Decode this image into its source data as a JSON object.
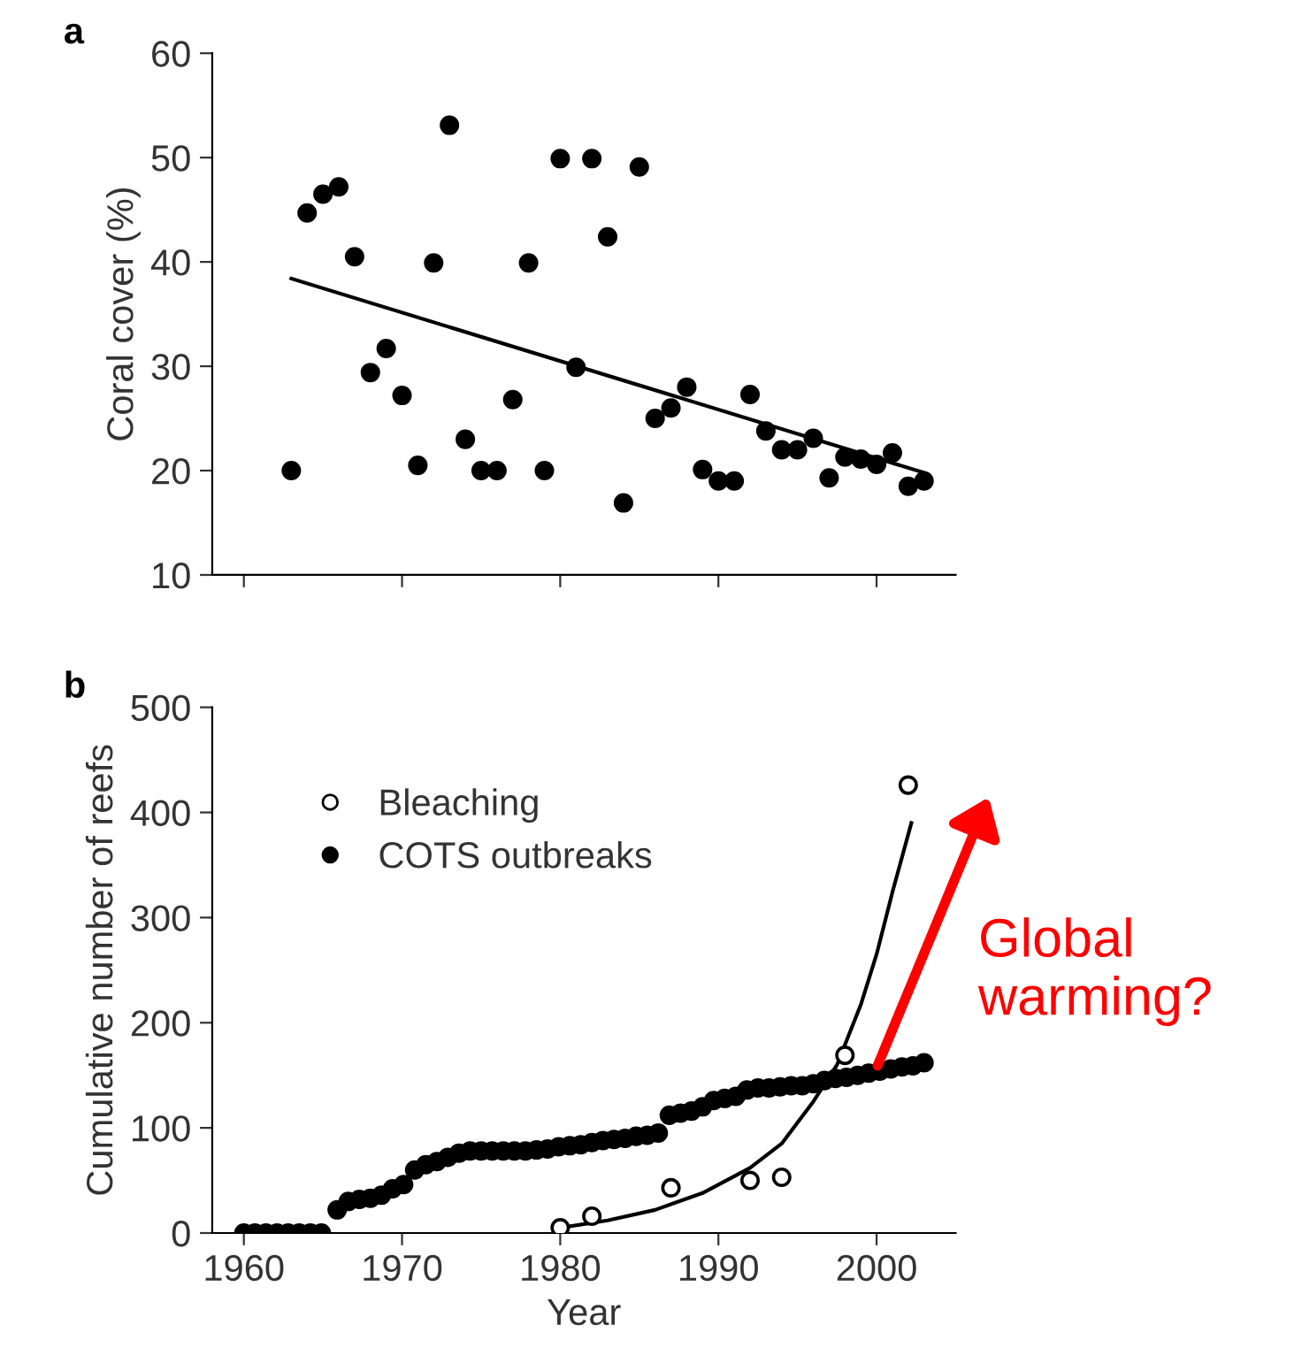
{
  "chart_data": [
    {
      "type": "scatter",
      "title": "a",
      "ylabel": "Coral cover (%)",
      "xlim": [
        1958,
        2005
      ],
      "xticks": [
        {
          "value": 1960,
          "label": null
        },
        {
          "value": 1970,
          "label": null
        },
        {
          "value": 1980,
          "label": null
        },
        {
          "value": 1990,
          "label": null
        },
        {
          "value": 2000,
          "label": null
        }
      ],
      "ylim": [
        10,
        60
      ],
      "yticks": [
        10,
        20,
        30,
        40,
        50,
        60
      ],
      "tick_labels": "y",
      "grid": false,
      "legend": false,
      "series": [
        {
          "marker": "circle",
          "color": "#000000",
          "x": [
            1963,
            1964,
            1965,
            1966,
            1967,
            1968,
            1969,
            1970,
            1971,
            1972,
            1973,
            1974,
            1975,
            1976,
            1977,
            1978,
            1979,
            1980,
            1981,
            1982,
            1983,
            1984,
            1985,
            1986,
            1987,
            1988,
            1989,
            1990,
            1991,
            1992,
            1993,
            1994,
            1995,
            1996,
            1997,
            1998,
            1999,
            2000,
            2001,
            2002,
            2003
          ],
          "values": [
            20.0,
            44.7,
            46.5,
            47.2,
            40.5,
            29.4,
            31.7,
            27.2,
            20.5,
            39.9,
            53.1,
            23.0,
            20.0,
            20.0,
            26.8,
            39.9,
            20.0,
            49.9,
            29.9,
            49.9,
            42.4,
            16.9,
            49.1,
            25.0,
            26.0,
            28.0,
            20.1,
            19.0,
            19.0,
            27.3,
            23.8,
            22.0,
            22.0,
            23.1,
            19.3,
            21.3,
            21.1,
            20.6,
            21.7,
            18.5,
            19.0
          ]
        },
        {
          "type": "line",
          "marker": "none",
          "color": "#000000",
          "x": [
            1963,
            2003
          ],
          "values": [
            38.4,
            19.8
          ]
        }
      ]
    },
    {
      "type": "scatter",
      "title": "b",
      "xlabel": "Year",
      "ylabel": "Cumulative number of reefs",
      "xlim": [
        1958,
        2005
      ],
      "xticks": [
        1960,
        1970,
        1980,
        1990,
        2000
      ],
      "ylim": [
        0,
        500
      ],
      "yticks": [
        0,
        100,
        200,
        300,
        400,
        500
      ],
      "grid": false,
      "legend": "top left",
      "annotations": [
        "Global warming?"
      ],
      "series": [
        {
          "name": "Bleaching",
          "marker": "circle",
          "color": "#ffffff",
          "x": [
            1980,
            1982,
            1987,
            1992,
            1994,
            1998,
            2002
          ],
          "values": [
            5,
            16,
            43,
            50,
            53,
            169,
            426
          ]
        },
        {
          "name": "COTS outbreaks",
          "marker": "circle",
          "color": "#000000",
          "x": [
            1960.0,
            1960.7,
            1961.4,
            1962.1,
            1962.8,
            1963.5,
            1964.2,
            1964.9,
            1965.9,
            1966.6,
            1967.3,
            1968.0,
            1968.7,
            1969.4,
            1970.1,
            1970.8,
            1971.5,
            1972.2,
            1972.9,
            1973.6,
            1974.3,
            1975.0,
            1975.7,
            1976.4,
            1977.1,
            1977.8,
            1978.5,
            1979.2,
            1979.9,
            1980.6,
            1981.3,
            1982.0,
            1982.7,
            1983.4,
            1984.1,
            1984.8,
            1985.5,
            1986.2,
            1986.9,
            1987.6,
            1988.3,
            1989.0,
            1989.7,
            1990.4,
            1991.1,
            1991.8,
            1992.5,
            1993.2,
            1993.9,
            1994.6,
            1995.3,
            1996.0,
            1996.7,
            1997.4,
            1998.1,
            1998.8,
            1999.5,
            2000.2,
            2000.9,
            2001.6,
            2002.3,
            2003.0
          ],
          "values": [
            0,
            0,
            0,
            0,
            0,
            0,
            0,
            0,
            22,
            30,
            32,
            33,
            36,
            42,
            46,
            60,
            65,
            68,
            72,
            76,
            78,
            78,
            78,
            78,
            78,
            78,
            79,
            80,
            82,
            83,
            84,
            86,
            88,
            89,
            90,
            92,
            93,
            95,
            112,
            114,
            116,
            120,
            126,
            128,
            130,
            136,
            138,
            138,
            139,
            140,
            140,
            142,
            145,
            147,
            148,
            150,
            152,
            154,
            156,
            158,
            159,
            162
          ]
        },
        {
          "type": "line",
          "marker": "none",
          "color": "#000000",
          "x": [
            1980,
            1983,
            1986,
            1989,
            1992,
            1994,
            1996,
            1997.5,
            1999,
            2000,
            2001,
            2002.2
          ],
          "values": [
            5,
            12,
            22,
            38,
            62,
            85,
            125,
            160,
            217,
            265,
            324,
            390
          ]
        }
      ]
    }
  ]
}
